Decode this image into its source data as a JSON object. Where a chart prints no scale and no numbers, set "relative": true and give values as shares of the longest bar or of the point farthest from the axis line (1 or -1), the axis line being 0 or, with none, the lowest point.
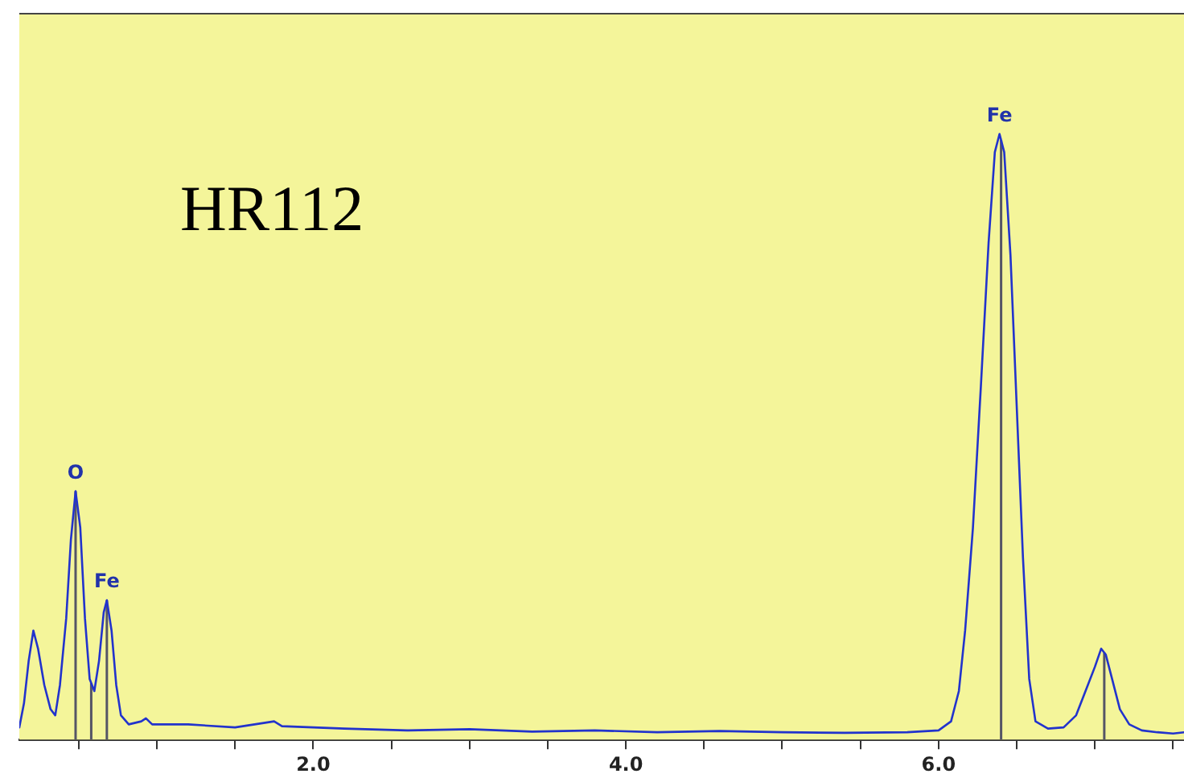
{
  "chart_data": {
    "type": "line",
    "title": "HR112",
    "relative": true,
    "legend": false,
    "marker": "none",
    "line_style": "solid",
    "tick_labels": "x",
    "xlim": [
      0.12,
      7.57
    ],
    "xticks": [
      {
        "value": 0.5,
        "label": null
      },
      {
        "value": 1,
        "label": null
      },
      {
        "value": 1.5,
        "label": null
      },
      {
        "value": 2,
        "label": "2.0"
      },
      {
        "value": 2.5,
        "label": null
      },
      {
        "value": 3,
        "label": null
      },
      {
        "value": 3.5,
        "label": null
      },
      {
        "value": 4,
        "label": "4.0"
      },
      {
        "value": 4.5,
        "label": null
      },
      {
        "value": 5,
        "label": null
      },
      {
        "value": 5.5,
        "label": null
      },
      {
        "value": 6,
        "label": "6.0"
      },
      {
        "value": 6.5,
        "label": null
      },
      {
        "value": 7,
        "label": null
      },
      {
        "value": 7.5,
        "label": null
      }
    ],
    "series": [
      {
        "color": "#2233cc",
        "x": [
          0.12,
          0.15,
          0.18,
          0.21,
          0.24,
          0.28,
          0.32,
          0.35,
          0.38,
          0.42,
          0.45,
          0.48,
          0.51,
          0.54,
          0.57,
          0.6,
          0.63,
          0.66,
          0.68,
          0.71,
          0.74,
          0.77,
          0.82,
          0.9,
          0.93,
          0.97,
          1.2,
          1.5,
          1.75,
          1.8,
          2.2,
          2.6,
          3.0,
          3.4,
          3.8,
          4.2,
          4.6,
          5.0,
          5.4,
          5.8,
          6.0,
          6.08,
          6.13,
          6.17,
          6.22,
          6.27,
          6.32,
          6.36,
          6.39,
          6.42,
          6.46,
          6.5,
          6.54,
          6.58,
          6.62,
          6.7,
          6.8,
          6.88,
          6.94,
          7.0,
          7.04,
          7.07,
          7.11,
          7.16,
          7.22,
          7.3,
          7.4,
          7.5,
          7.57
        ],
        "values": [
          0.02,
          0.06,
          0.13,
          0.18,
          0.15,
          0.09,
          0.05,
          0.04,
          0.09,
          0.2,
          0.33,
          0.41,
          0.35,
          0.2,
          0.1,
          0.08,
          0.13,
          0.21,
          0.23,
          0.18,
          0.09,
          0.04,
          0.025,
          0.03,
          0.035,
          0.025,
          0.025,
          0.02,
          0.03,
          0.022,
          0.018,
          0.015,
          0.017,
          0.013,
          0.015,
          0.012,
          0.014,
          0.012,
          0.011,
          0.012,
          0.015,
          0.03,
          0.08,
          0.18,
          0.35,
          0.58,
          0.82,
          0.97,
          1,
          0.97,
          0.8,
          0.55,
          0.3,
          0.1,
          0.03,
          0.018,
          0.02,
          0.04,
          0.08,
          0.12,
          0.15,
          0.14,
          0.1,
          0.05,
          0.025,
          0.015,
          0.012,
          0.01,
          0.012
        ]
      }
    ],
    "ref_lines": [
      {
        "axis": "x",
        "value": 0.48,
        "color": "#555566"
      },
      {
        "axis": "x",
        "value": 0.58,
        "color": "#555566"
      },
      {
        "axis": "x",
        "value": 0.68,
        "color": "#555566"
      },
      {
        "axis": "x",
        "value": 6.4,
        "color": "#555566"
      },
      {
        "axis": "x",
        "value": 7.06,
        "color": "#555566"
      }
    ],
    "annotations": [
      {
        "text": "O",
        "x": 0.48,
        "y": 0.41
      },
      {
        "text": "Fe",
        "x": 0.68,
        "y": 0.23
      },
      {
        "text": "Fe",
        "x": 6.39,
        "y": 1
      }
    ]
  }
}
